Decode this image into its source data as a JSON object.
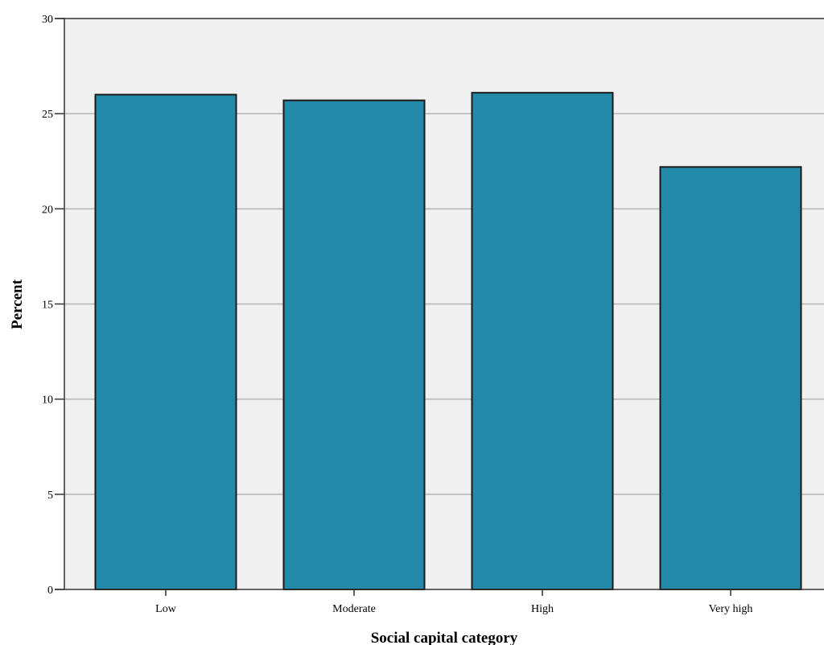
{
  "chart_data": {
    "type": "bar",
    "categories": [
      "Low",
      "Moderate",
      "High",
      "Very high"
    ],
    "values": [
      26.0,
      25.7,
      26.1,
      22.2
    ],
    "title": "",
    "xlabel": "Social capital category",
    "ylabel": "Percent",
    "ylim": [
      0,
      30
    ],
    "yticks": [
      0,
      5,
      10,
      15,
      20,
      25,
      30
    ],
    "grid": true,
    "legend": "none",
    "colors": {
      "bar": "#248aaa",
      "bar_edge": "#1a1a1a",
      "plot_background": "#f0f0f0",
      "gridline": "#b4b4b4"
    }
  }
}
